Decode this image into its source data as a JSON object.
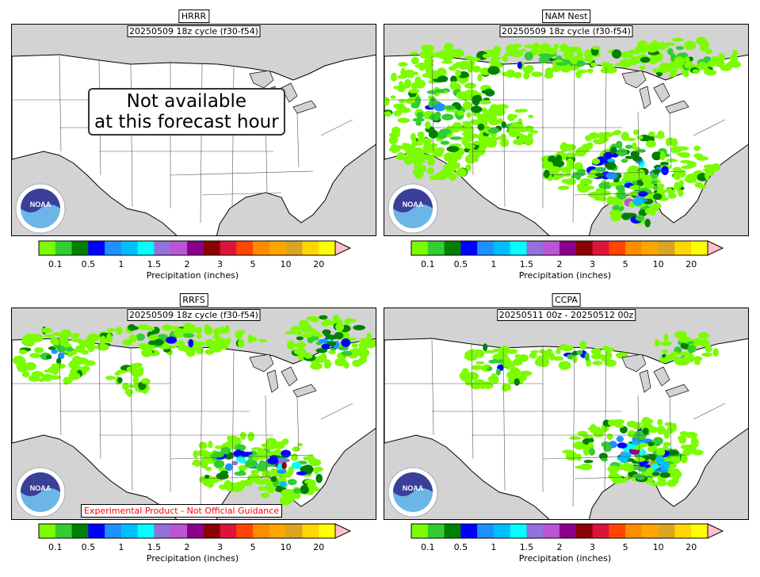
{
  "panels": [
    {
      "id": "hrrr",
      "model": "HRRR",
      "cycle": "20250509 18z cycle (f30-f54)",
      "not_available": [
        "Not available",
        "at this forecast hour"
      ],
      "experimental": "",
      "precip": "none"
    },
    {
      "id": "namnest",
      "model": "NAM Nest",
      "cycle": "20250509 18z cycle (f30-f54)",
      "not_available": [],
      "experimental": "",
      "precip": "nam"
    },
    {
      "id": "rrfs",
      "model": "RRFS",
      "cycle": "20250509 18z cycle (f30-f54)",
      "not_available": [],
      "experimental": "Experimental Product - Not Official Guidance",
      "precip": "rrfs"
    },
    {
      "id": "ccpa",
      "model": "CCPA",
      "cycle": "20250511 00z - 20250512 00z",
      "not_available": [],
      "experimental": "",
      "precip": "ccpa"
    }
  ],
  "colorbar": {
    "title": "Precipitation (inches)",
    "tick_labels": [
      "0.1",
      "0.5",
      "1",
      "1.5",
      "2",
      "3",
      "5",
      "10",
      "20"
    ],
    "colors": [
      "#7cfc00",
      "#32cd32",
      "#008000",
      "#0000ff",
      "#1e90ff",
      "#00bfff",
      "#00ffff",
      "#9370db",
      "#ba55d3",
      "#8b008b",
      "#8b0000",
      "#dc143c",
      "#ff4500",
      "#ff8c00",
      "#ffa500",
      "#daa520",
      "#ffd700",
      "#ffff00"
    ],
    "extend_color": "#ffc0cb"
  },
  "logo": {
    "text": "NOAA",
    "icon": "noaa-logo-icon"
  },
  "colors": {
    "land": "#ffffff",
    "water": "#d3d3d3",
    "border": "#000000"
  }
}
